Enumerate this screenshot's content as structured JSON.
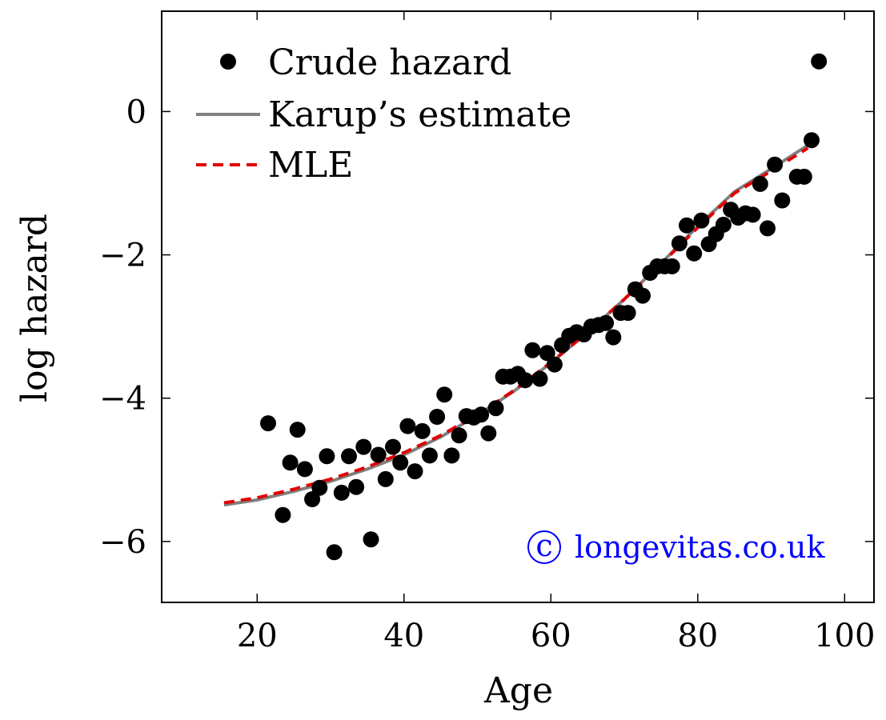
{
  "chart_data": {
    "type": "scatter",
    "xlabel": "Age",
    "ylabel": "log hazard",
    "xlim": [
      7,
      104
    ],
    "ylim": [
      -6.85,
      1.4
    ],
    "x_ticks": [
      20,
      40,
      60,
      80,
      100
    ],
    "y_ticks": [
      0,
      -2,
      -4,
      -6
    ],
    "x_tick_labels": [
      "20",
      "40",
      "60",
      "80",
      "100"
    ],
    "y_tick_labels": [
      "0",
      "−2",
      "−4",
      "−6"
    ],
    "grid": false,
    "legend_position": "top-left",
    "series": [
      {
        "name": "Crude hazard",
        "kind": "points",
        "color": "#000000",
        "points": [
          [
            21.5,
            -4.35
          ],
          [
            23.5,
            -5.63
          ],
          [
            24.5,
            -4.9
          ],
          [
            25.5,
            -4.44
          ],
          [
            26.5,
            -4.99
          ],
          [
            27.5,
            -5.41
          ],
          [
            28.5,
            -5.25
          ],
          [
            29.5,
            -4.81
          ],
          [
            30.5,
            -6.15
          ],
          [
            31.5,
            -5.32
          ],
          [
            32.5,
            -4.81
          ],
          [
            33.5,
            -5.24
          ],
          [
            34.5,
            -4.68
          ],
          [
            35.5,
            -5.97
          ],
          [
            36.5,
            -4.79
          ],
          [
            37.5,
            -5.13
          ],
          [
            38.5,
            -4.68
          ],
          [
            39.5,
            -4.9
          ],
          [
            40.5,
            -4.39
          ],
          [
            41.5,
            -5.02
          ],
          [
            42.5,
            -4.46
          ],
          [
            43.5,
            -4.8
          ],
          [
            44.5,
            -4.26
          ],
          [
            45.5,
            -3.95
          ],
          [
            46.5,
            -4.8
          ],
          [
            47.5,
            -4.52
          ],
          [
            48.5,
            -4.25
          ],
          [
            49.5,
            -4.27
          ],
          [
            50.5,
            -4.23
          ],
          [
            51.5,
            -4.49
          ],
          [
            52.5,
            -4.14
          ],
          [
            53.5,
            -3.7
          ],
          [
            54.5,
            -3.7
          ],
          [
            55.5,
            -3.66
          ],
          [
            56.5,
            -3.75
          ],
          [
            57.5,
            -3.33
          ],
          [
            58.5,
            -3.73
          ],
          [
            59.5,
            -3.37
          ],
          [
            60.5,
            -3.53
          ],
          [
            61.5,
            -3.26
          ],
          [
            62.5,
            -3.13
          ],
          [
            63.5,
            -3.08
          ],
          [
            64.5,
            -3.11
          ],
          [
            65.5,
            -3.0
          ],
          [
            66.5,
            -2.98
          ],
          [
            67.5,
            -2.95
          ],
          [
            68.5,
            -3.15
          ],
          [
            69.5,
            -2.81
          ],
          [
            70.5,
            -2.81
          ],
          [
            71.5,
            -2.48
          ],
          [
            72.5,
            -2.57
          ],
          [
            73.5,
            -2.25
          ],
          [
            74.5,
            -2.16
          ],
          [
            75.5,
            -2.16
          ],
          [
            76.5,
            -2.16
          ],
          [
            77.5,
            -1.84
          ],
          [
            78.5,
            -1.59
          ],
          [
            79.5,
            -1.98
          ],
          [
            80.5,
            -1.52
          ],
          [
            81.5,
            -1.85
          ],
          [
            82.5,
            -1.71
          ],
          [
            83.5,
            -1.58
          ],
          [
            84.5,
            -1.37
          ],
          [
            85.5,
            -1.48
          ],
          [
            86.5,
            -1.42
          ],
          [
            87.5,
            -1.44
          ],
          [
            88.5,
            -1.01
          ],
          [
            89.5,
            -1.63
          ],
          [
            90.5,
            -0.74
          ],
          [
            91.5,
            -1.24
          ],
          [
            93.5,
            -0.91
          ],
          [
            94.5,
            -0.91
          ],
          [
            95.5,
            -0.4
          ],
          [
            96.5,
            0.7
          ]
        ]
      },
      {
        "name": "Karup’s estimate",
        "kind": "line",
        "color": "#808080",
        "dash": "solid",
        "points": [
          [
            15.5,
            -5.49
          ],
          [
            20,
            -5.42
          ],
          [
            25,
            -5.3
          ],
          [
            30,
            -5.16
          ],
          [
            35,
            -4.99
          ],
          [
            40,
            -4.79
          ],
          [
            45,
            -4.54
          ],
          [
            50,
            -4.24
          ],
          [
            55,
            -3.9
          ],
          [
            60,
            -3.51
          ],
          [
            65,
            -3.08
          ],
          [
            70,
            -2.62
          ],
          [
            75,
            -2.12
          ],
          [
            80,
            -1.6
          ],
          [
            85,
            -1.12
          ],
          [
            90,
            -0.8
          ],
          [
            95,
            -0.47
          ]
        ]
      },
      {
        "name": "MLE",
        "kind": "line",
        "color": "#e00000",
        "dash": "dashed",
        "points": [
          [
            15.5,
            -5.46
          ],
          [
            20,
            -5.39
          ],
          [
            25,
            -5.27
          ],
          [
            30,
            -5.13
          ],
          [
            35,
            -4.96
          ],
          [
            40,
            -4.76
          ],
          [
            45,
            -4.52
          ],
          [
            50,
            -4.23
          ],
          [
            55,
            -3.89
          ],
          [
            60,
            -3.5
          ],
          [
            65,
            -3.08
          ],
          [
            70,
            -2.62
          ],
          [
            75,
            -2.13
          ],
          [
            80,
            -1.62
          ],
          [
            85,
            -1.14
          ],
          [
            90,
            -0.83
          ],
          [
            95,
            -0.51
          ]
        ]
      }
    ]
  },
  "watermark": {
    "symbol": "c",
    "text": "longevitas.co.uk",
    "color": "#0000ff"
  }
}
